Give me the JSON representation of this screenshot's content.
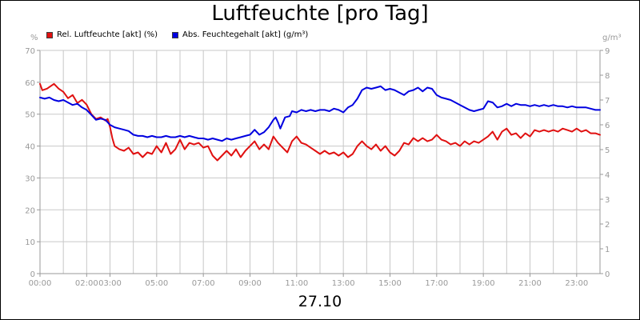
{
  "title": "Luftfeuchte [pro Tag]",
  "date_label": "27.10",
  "colors": {
    "rel": "#e01010",
    "abs": "#0000e0",
    "grid": "#c8c8c8",
    "axis": "#999999"
  },
  "chart_data": {
    "type": "line",
    "title": "Luftfeuchte [pro Tag]",
    "xlabel": "27.10",
    "x_unit": "hours",
    "x_tick_labels": [
      "00:00",
      "02:00",
      "03:00",
      "05:00",
      "07:00",
      "09:00",
      "11:00",
      "13:00",
      "15:00",
      "17:00",
      "19:00",
      "21:00",
      "23:00"
    ],
    "x_tick_hours": [
      0,
      2,
      3,
      5,
      7,
      9,
      11,
      13,
      15,
      17,
      19,
      21,
      23
    ],
    "x_range": [
      0,
      24
    ],
    "y_left": {
      "label": "%",
      "range": [
        0,
        70
      ],
      "ticks": [
        "0",
        "10",
        "20",
        "30",
        "40",
        "50",
        "60",
        "70"
      ]
    },
    "y_right": {
      "label": "g/m³",
      "range": [
        0,
        9
      ],
      "ticks": [
        "0",
        "1",
        "2",
        "3",
        "4",
        "5",
        "6",
        "7",
        "8",
        "9"
      ]
    },
    "grid": true,
    "legend_position": "top-left",
    "series": [
      {
        "name": "Rel. Luftfeuchte [akt] (%)",
        "axis": "left",
        "color": "#e01010",
        "points": [
          [
            0.0,
            59.5
          ],
          [
            0.1,
            57.5
          ],
          [
            0.3,
            58.0
          ],
          [
            0.5,
            59.0
          ],
          [
            0.6,
            59.5
          ],
          [
            0.8,
            58.0
          ],
          [
            1.0,
            57.0
          ],
          [
            1.2,
            55.0
          ],
          [
            1.4,
            56.0
          ],
          [
            1.6,
            53.5
          ],
          [
            1.8,
            54.5
          ],
          [
            2.0,
            53.0
          ],
          [
            2.2,
            50.0
          ],
          [
            2.4,
            48.5
          ],
          [
            2.6,
            49.0
          ],
          [
            2.8,
            48.0
          ],
          [
            2.9,
            48.5
          ],
          [
            3.0,
            46.0
          ],
          [
            3.1,
            42.5
          ],
          [
            3.2,
            40.0
          ],
          [
            3.4,
            39.0
          ],
          [
            3.6,
            38.5
          ],
          [
            3.8,
            39.5
          ],
          [
            4.0,
            37.5
          ],
          [
            4.2,
            38.0
          ],
          [
            4.4,
            36.5
          ],
          [
            4.6,
            38.0
          ],
          [
            4.8,
            37.5
          ],
          [
            5.0,
            40.0
          ],
          [
            5.2,
            38.0
          ],
          [
            5.4,
            41.0
          ],
          [
            5.6,
            37.5
          ],
          [
            5.8,
            39.0
          ],
          [
            6.0,
            42.0
          ],
          [
            6.2,
            39.0
          ],
          [
            6.4,
            41.0
          ],
          [
            6.6,
            40.5
          ],
          [
            6.8,
            41.0
          ],
          [
            7.0,
            39.5
          ],
          [
            7.2,
            40.0
          ],
          [
            7.4,
            37.0
          ],
          [
            7.6,
            35.5
          ],
          [
            7.8,
            37.0
          ],
          [
            8.0,
            38.5
          ],
          [
            8.2,
            37.0
          ],
          [
            8.4,
            39.0
          ],
          [
            8.6,
            36.5
          ],
          [
            8.8,
            38.5
          ],
          [
            9.0,
            40.0
          ],
          [
            9.2,
            41.5
          ],
          [
            9.4,
            39.0
          ],
          [
            9.6,
            40.5
          ],
          [
            9.8,
            39.0
          ],
          [
            10.0,
            43.0
          ],
          [
            10.2,
            41.0
          ],
          [
            10.4,
            39.5
          ],
          [
            10.6,
            38.0
          ],
          [
            10.8,
            41.5
          ],
          [
            11.0,
            43.0
          ],
          [
            11.2,
            41.0
          ],
          [
            11.4,
            40.5
          ],
          [
            11.6,
            39.5
          ],
          [
            11.8,
            38.5
          ],
          [
            12.0,
            37.5
          ],
          [
            12.2,
            38.5
          ],
          [
            12.4,
            37.5
          ],
          [
            12.6,
            38.0
          ],
          [
            12.8,
            37.0
          ],
          [
            13.0,
            38.0
          ],
          [
            13.2,
            36.5
          ],
          [
            13.4,
            37.5
          ],
          [
            13.6,
            40.0
          ],
          [
            13.8,
            41.5
          ],
          [
            14.0,
            40.0
          ],
          [
            14.2,
            39.0
          ],
          [
            14.4,
            40.5
          ],
          [
            14.6,
            38.5
          ],
          [
            14.8,
            40.0
          ],
          [
            15.0,
            38.0
          ],
          [
            15.2,
            37.0
          ],
          [
            15.4,
            38.5
          ],
          [
            15.6,
            41.0
          ],
          [
            15.8,
            40.5
          ],
          [
            16.0,
            42.5
          ],
          [
            16.2,
            41.5
          ],
          [
            16.4,
            42.5
          ],
          [
            16.6,
            41.5
          ],
          [
            16.8,
            42.0
          ],
          [
            17.0,
            43.5
          ],
          [
            17.2,
            42.0
          ],
          [
            17.4,
            41.5
          ],
          [
            17.6,
            40.5
          ],
          [
            17.8,
            41.0
          ],
          [
            18.0,
            40.0
          ],
          [
            18.2,
            41.5
          ],
          [
            18.4,
            40.5
          ],
          [
            18.6,
            41.5
          ],
          [
            18.8,
            41.0
          ],
          [
            19.0,
            42.0
          ],
          [
            19.2,
            43.0
          ],
          [
            19.4,
            44.5
          ],
          [
            19.6,
            42.0
          ],
          [
            19.8,
            44.5
          ],
          [
            20.0,
            45.5
          ],
          [
            20.2,
            43.5
          ],
          [
            20.4,
            44.0
          ],
          [
            20.6,
            42.5
          ],
          [
            20.8,
            44.0
          ],
          [
            21.0,
            43.0
          ],
          [
            21.2,
            45.0
          ],
          [
            21.4,
            44.5
          ],
          [
            21.6,
            45.0
          ],
          [
            21.8,
            44.5
          ],
          [
            22.0,
            45.0
          ],
          [
            22.2,
            44.5
          ],
          [
            22.4,
            45.5
          ],
          [
            22.6,
            45.0
          ],
          [
            22.8,
            44.5
          ],
          [
            23.0,
            45.5
          ],
          [
            23.2,
            44.5
          ],
          [
            23.4,
            45.0
          ],
          [
            23.6,
            44.0
          ],
          [
            23.8,
            44.0
          ],
          [
            24.0,
            43.5
          ]
        ]
      },
      {
        "name": "Abs. Feuchtegehalt [akt] (g/m³)",
        "axis": "right",
        "color": "#0000e0",
        "points": [
          [
            0.0,
            7.1
          ],
          [
            0.2,
            7.05
          ],
          [
            0.4,
            7.1
          ],
          [
            0.6,
            7.0
          ],
          [
            0.8,
            6.95
          ],
          [
            1.0,
            7.0
          ],
          [
            1.2,
            6.9
          ],
          [
            1.4,
            6.8
          ],
          [
            1.6,
            6.85
          ],
          [
            1.8,
            6.7
          ],
          [
            2.0,
            6.6
          ],
          [
            2.2,
            6.4
          ],
          [
            2.4,
            6.2
          ],
          [
            2.6,
            6.25
          ],
          [
            2.8,
            6.2
          ],
          [
            3.0,
            6.0
          ],
          [
            3.2,
            5.9
          ],
          [
            3.4,
            5.85
          ],
          [
            3.6,
            5.8
          ],
          [
            3.8,
            5.75
          ],
          [
            4.0,
            5.6
          ],
          [
            4.2,
            5.55
          ],
          [
            4.4,
            5.55
          ],
          [
            4.6,
            5.5
          ],
          [
            4.8,
            5.55
          ],
          [
            5.0,
            5.5
          ],
          [
            5.2,
            5.5
          ],
          [
            5.4,
            5.55
          ],
          [
            5.6,
            5.5
          ],
          [
            5.8,
            5.5
          ],
          [
            6.0,
            5.55
          ],
          [
            6.2,
            5.5
          ],
          [
            6.4,
            5.55
          ],
          [
            6.6,
            5.5
          ],
          [
            6.8,
            5.45
          ],
          [
            7.0,
            5.45
          ],
          [
            7.2,
            5.4
          ],
          [
            7.4,
            5.45
          ],
          [
            7.6,
            5.4
          ],
          [
            7.8,
            5.35
          ],
          [
            8.0,
            5.45
          ],
          [
            8.2,
            5.4
          ],
          [
            8.4,
            5.45
          ],
          [
            8.6,
            5.5
          ],
          [
            8.8,
            5.55
          ],
          [
            9.0,
            5.6
          ],
          [
            9.2,
            5.8
          ],
          [
            9.4,
            5.6
          ],
          [
            9.6,
            5.7
          ],
          [
            9.8,
            5.9
          ],
          [
            10.0,
            6.2
          ],
          [
            10.1,
            6.3
          ],
          [
            10.2,
            6.1
          ],
          [
            10.3,
            5.85
          ],
          [
            10.5,
            6.3
          ],
          [
            10.7,
            6.35
          ],
          [
            10.8,
            6.55
          ],
          [
            11.0,
            6.5
          ],
          [
            11.2,
            6.6
          ],
          [
            11.4,
            6.55
          ],
          [
            11.6,
            6.6
          ],
          [
            11.8,
            6.55
          ],
          [
            12.0,
            6.6
          ],
          [
            12.2,
            6.6
          ],
          [
            12.4,
            6.55
          ],
          [
            12.6,
            6.65
          ],
          [
            12.8,
            6.6
          ],
          [
            13.0,
            6.5
          ],
          [
            13.2,
            6.7
          ],
          [
            13.4,
            6.8
          ],
          [
            13.6,
            7.05
          ],
          [
            13.8,
            7.4
          ],
          [
            14.0,
            7.5
          ],
          [
            14.2,
            7.45
          ],
          [
            14.4,
            7.5
          ],
          [
            14.6,
            7.55
          ],
          [
            14.8,
            7.4
          ],
          [
            15.0,
            7.45
          ],
          [
            15.2,
            7.4
          ],
          [
            15.4,
            7.3
          ],
          [
            15.6,
            7.2
          ],
          [
            15.8,
            7.35
          ],
          [
            16.0,
            7.4
          ],
          [
            16.2,
            7.5
          ],
          [
            16.4,
            7.35
          ],
          [
            16.6,
            7.5
          ],
          [
            16.8,
            7.45
          ],
          [
            17.0,
            7.2
          ],
          [
            17.2,
            7.1
          ],
          [
            17.4,
            7.05
          ],
          [
            17.6,
            7.0
          ],
          [
            17.8,
            6.9
          ],
          [
            18.0,
            6.8
          ],
          [
            18.2,
            6.7
          ],
          [
            18.4,
            6.6
          ],
          [
            18.6,
            6.55
          ],
          [
            18.8,
            6.6
          ],
          [
            19.0,
            6.65
          ],
          [
            19.2,
            6.95
          ],
          [
            19.4,
            6.9
          ],
          [
            19.6,
            6.7
          ],
          [
            19.8,
            6.75
          ],
          [
            20.0,
            6.85
          ],
          [
            20.2,
            6.75
          ],
          [
            20.4,
            6.85
          ],
          [
            20.6,
            6.8
          ],
          [
            20.8,
            6.8
          ],
          [
            21.0,
            6.75
          ],
          [
            21.2,
            6.8
          ],
          [
            21.4,
            6.75
          ],
          [
            21.6,
            6.8
          ],
          [
            21.8,
            6.75
          ],
          [
            22.0,
            6.8
          ],
          [
            22.2,
            6.75
          ],
          [
            22.4,
            6.75
          ],
          [
            22.6,
            6.7
          ],
          [
            22.8,
            6.75
          ],
          [
            23.0,
            6.7
          ],
          [
            23.2,
            6.7
          ],
          [
            23.4,
            6.7
          ],
          [
            23.6,
            6.65
          ],
          [
            23.8,
            6.6
          ],
          [
            24.0,
            6.6
          ]
        ]
      }
    ]
  }
}
